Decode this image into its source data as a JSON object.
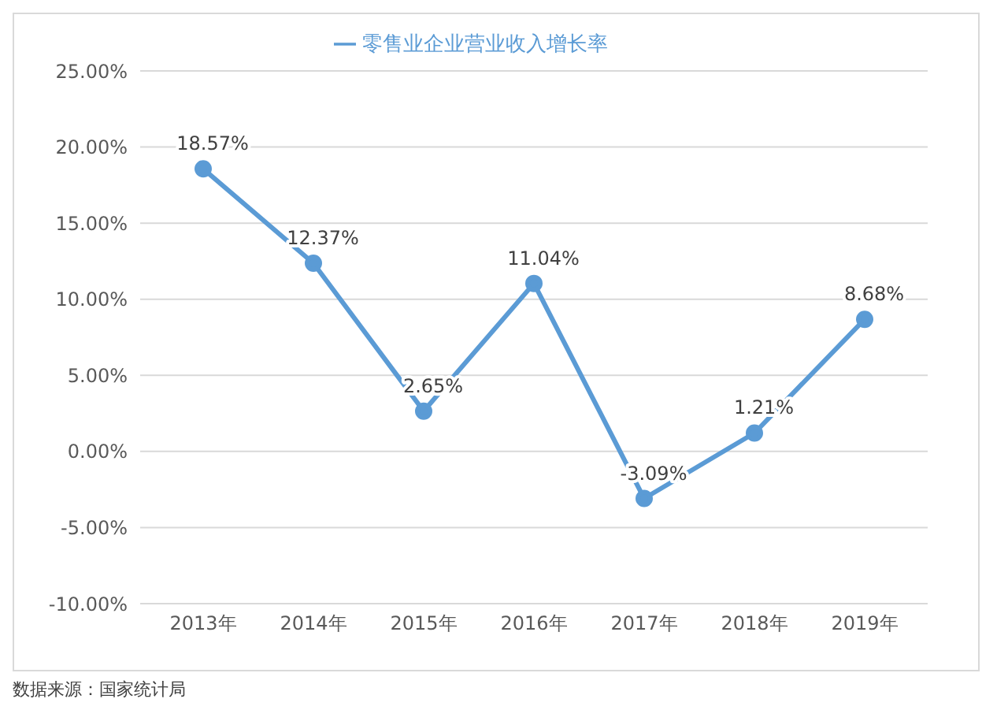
{
  "chart_data": {
    "type": "line",
    "categories": [
      "2013年",
      "2014年",
      "2015年",
      "2016年",
      "2017年",
      "2018年",
      "2019年"
    ],
    "series": [
      {
        "name": "零售业企业营业收入增长率",
        "color": "#5b9bd5",
        "values": [
          18.57,
          12.37,
          2.65,
          11.04,
          -3.09,
          1.21,
          8.68
        ],
        "value_labels": [
          "18.57%",
          "12.37%",
          "2.65%",
          "11.04%",
          "-3.09%",
          "1.21%",
          "8.68%"
        ]
      }
    ],
    "ylim": [
      -10,
      25
    ],
    "yticks": [
      {
        "value": -10,
        "label": "-10.00%"
      },
      {
        "value": -5,
        "label": "-5.00%"
      },
      {
        "value": 0,
        "label": "0.00%"
      },
      {
        "value": 5,
        "label": "5.00%"
      },
      {
        "value": 10,
        "label": "10.00%"
      },
      {
        "value": 15,
        "label": "15.00%"
      },
      {
        "value": 20,
        "label": "20.00%"
      },
      {
        "value": 25,
        "label": "25.00%"
      }
    ],
    "grid": "y",
    "legend": "top",
    "marker": "circle",
    "line_style": "solid",
    "annotations": [
      "数据来源：国家统计局"
    ]
  }
}
